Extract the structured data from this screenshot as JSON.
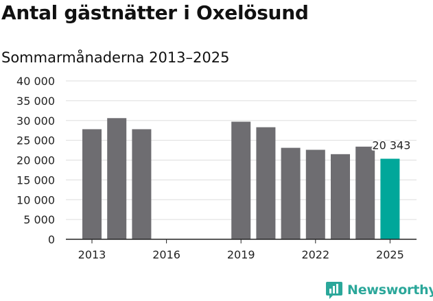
{
  "title": "Antal gästnätter i Oxelösund",
  "subtitle": "Sommarmånaderna 2013–2025",
  "brand": {
    "name": "Newsworthy",
    "color": "#2ba79a"
  },
  "colors": {
    "bar": "#6e6d71",
    "highlight": "#00a79a",
    "grid": "#dddddd",
    "text": "#222222"
  },
  "chart_data": {
    "type": "bar",
    "categories": [
      "2013",
      "2014",
      "2015",
      "2016",
      "2017",
      "2018",
      "2019",
      "2020",
      "2021",
      "2022",
      "2023",
      "2024",
      "2025"
    ],
    "series": [
      {
        "values": [
          27800,
          30600,
          27800,
          null,
          null,
          null,
          29700,
          28300,
          23100,
          22600,
          21500,
          23400,
          20343
        ]
      }
    ],
    "highlight_category": "2025",
    "data_labels": [
      {
        "category": "2025",
        "text": "20 343"
      }
    ],
    "ylim": [
      0,
      40000
    ],
    "yticks": [
      0,
      5000,
      10000,
      15000,
      20000,
      25000,
      30000,
      35000,
      40000
    ],
    "ytick_labels": [
      "0",
      "5 000",
      "10 000",
      "15 000",
      "20 000",
      "25 000",
      "30 000",
      "35 000",
      "40 000"
    ],
    "xtick_labels": [
      "2013",
      "2016",
      "2019",
      "2022",
      "2025"
    ],
    "xlabel": "",
    "ylabel": "",
    "grid": true,
    "legend": "none"
  }
}
